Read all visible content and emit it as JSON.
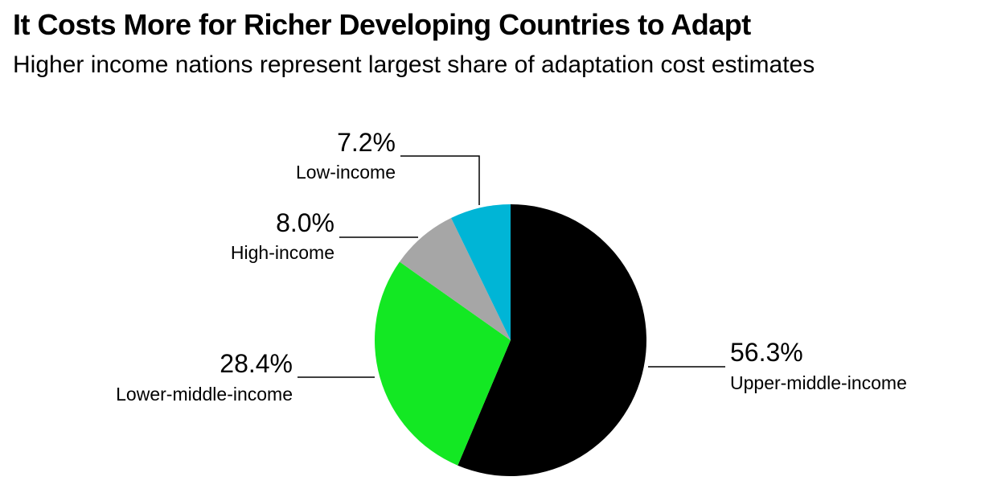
{
  "header": {
    "title": "It Costs More for Richer Developing Countries to Adapt",
    "subtitle": "Higher income nations represent largest share of adaptation cost estimates"
  },
  "chart_data": {
    "type": "pie",
    "title": "It Costs More for Richer Developing Countries to Adapt",
    "subtitle": "Higher income nations represent largest share of adaptation cost estimates",
    "unit": "%",
    "slices": [
      {
        "name": "Upper-middle-income",
        "value": 56.3,
        "label": "56.3%",
        "color": "#000000"
      },
      {
        "name": "Lower-middle-income",
        "value": 28.4,
        "label": "28.4%",
        "color": "#13e823"
      },
      {
        "name": "High-income",
        "value": 8.0,
        "label": "8.0%",
        "color": "#a6a6a6"
      },
      {
        "name": "Low-income",
        "value": 7.2,
        "label": "7.2%",
        "color": "#00b5d6"
      }
    ],
    "start": "12 o'clock",
    "direction": "clockwise",
    "legend": "none (direct labels with leader lines)"
  }
}
